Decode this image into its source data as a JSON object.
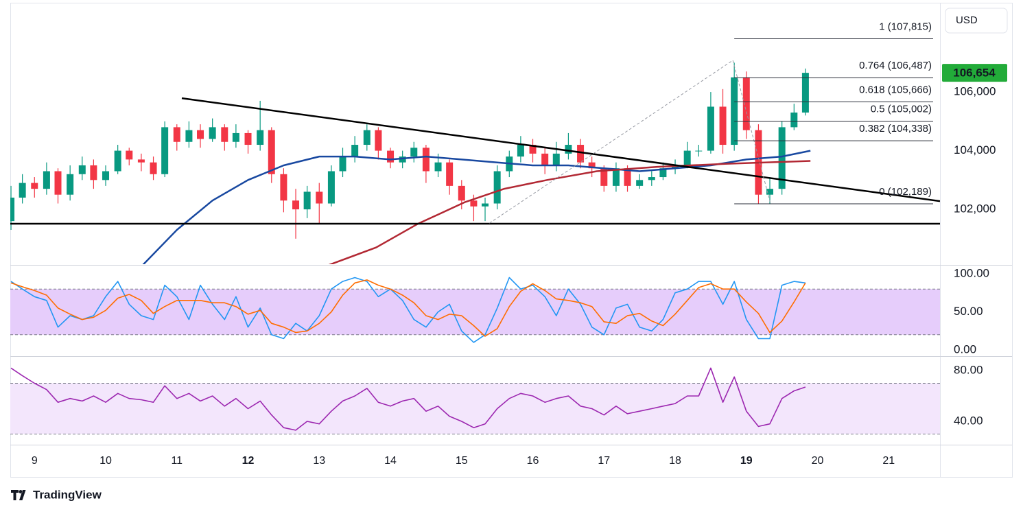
{
  "currency": "USD",
  "branding": "TradingView",
  "chart_data": [
    {
      "type": "candlestick",
      "x": [
        8.67,
        8.83,
        9,
        9.17,
        9.33,
        9.5,
        9.67,
        9.83,
        10,
        10.17,
        10.33,
        10.5,
        10.67,
        10.83,
        11,
        11.17,
        11.33,
        11.5,
        11.67,
        11.83,
        12,
        12.17,
        12.33,
        12.5,
        12.67,
        12.83,
        13,
        13.17,
        13.33,
        13.5,
        13.67,
        13.83,
        14,
        14.17,
        14.33,
        14.5,
        14.67,
        14.83,
        15,
        15.17,
        15.33,
        15.5,
        15.67,
        15.83,
        16,
        16.17,
        16.33,
        16.5,
        16.67,
        16.83,
        17,
        17.17,
        17.33,
        17.5,
        17.67,
        17.83,
        18,
        18.17,
        18.33,
        18.5,
        18.67,
        18.83,
        19,
        19.17,
        19.33,
        19.5,
        19.67,
        19.83
      ],
      "open": [
        101600,
        102400,
        102900,
        102700,
        103300,
        102500,
        103200,
        103500,
        103000,
        103300,
        104000,
        103700,
        103600,
        103200,
        104800,
        104300,
        104700,
        104400,
        104800,
        104300,
        104600,
        104200,
        104700,
        103200,
        102300,
        102000,
        102600,
        102200,
        103300,
        103800,
        104200,
        104700,
        104000,
        103600,
        103800,
        104100,
        103300,
        103600,
        102800,
        102300,
        102100,
        102200,
        103300,
        103800,
        104200,
        103900,
        103500,
        103900,
        104200,
        103600,
        103400,
        102800,
        103400,
        102800,
        103000,
        103100,
        103400,
        103500,
        104000,
        104000,
        105500,
        104200,
        106500,
        104700,
        102500,
        102700,
        104800,
        105300
      ],
      "high": [
        102800,
        103200,
        103100,
        103600,
        103400,
        103500,
        103800,
        103700,
        103500,
        104200,
        104100,
        103900,
        103800,
        105000,
        104900,
        105000,
        104900,
        105100,
        104900,
        104900,
        104700,
        105700,
        104800,
        103400,
        102700,
        102800,
        102900,
        103500,
        104100,
        104500,
        104900,
        104800,
        104100,
        104000,
        104300,
        104200,
        103900,
        103700,
        103000,
        102500,
        102400,
        103500,
        104000,
        104500,
        104400,
        104100,
        104300,
        104600,
        104400,
        103800,
        103500,
        103600,
        103500,
        103200,
        103300,
        103600,
        103700,
        104300,
        104200,
        106000,
        106100,
        107000,
        106700,
        104900,
        103100,
        105000,
        105600,
        106800
      ],
      "low": [
        101300,
        102200,
        102400,
        102500,
        102200,
        102300,
        103000,
        102700,
        102800,
        103200,
        103500,
        103300,
        103000,
        103100,
        104000,
        104100,
        104100,
        104300,
        104000,
        104100,
        103900,
        104000,
        102900,
        101900,
        101000,
        101700,
        101500,
        102100,
        103100,
        103600,
        104000,
        103700,
        103400,
        103400,
        103600,
        102900,
        103100,
        102500,
        102000,
        101600,
        101600,
        102000,
        103100,
        103600,
        103600,
        103200,
        103300,
        103700,
        103400,
        103100,
        102600,
        102600,
        102600,
        102700,
        102800,
        103000,
        103200,
        103400,
        103800,
        103900,
        103900,
        104000,
        104400,
        102189,
        102189,
        102500,
        104700,
        105200
      ],
      "close": [
        102400,
        102900,
        102700,
        103300,
        102500,
        103200,
        103500,
        103000,
        103300,
        104000,
        103700,
        103600,
        103200,
        104800,
        104300,
        104700,
        104400,
        104800,
        104300,
        104600,
        104200,
        104700,
        103200,
        102300,
        102000,
        102600,
        102200,
        103300,
        103800,
        104200,
        104700,
        104000,
        103600,
        103800,
        104100,
        103300,
        103600,
        102800,
        102300,
        102100,
        102200,
        103300,
        103800,
        104200,
        103900,
        103500,
        103900,
        104200,
        103600,
        103400,
        102800,
        103400,
        102800,
        103000,
        103100,
        103400,
        103500,
        104000,
        104000,
        105500,
        104200,
        106500,
        104700,
        102500,
        102700,
        104800,
        105300,
        106654
      ],
      "up_color": "#089981",
      "down_color": "#f23645",
      "xlim": [
        8.66,
        21.72
      ],
      "ylim": [
        100130,
        109020
      ],
      "yticks": [
        {
          "value": 102000,
          "label": "102,000"
        },
        {
          "value": 104000,
          "label": "104,000"
        },
        {
          "value": 106000,
          "label": "106,000"
        }
      ],
      "overlays": [
        {
          "color": "#1848a0",
          "x": [
            10.52,
            11,
            11.5,
            12,
            12.5,
            13,
            13.5,
            14,
            14.5,
            15,
            15.5,
            16,
            16.5,
            17,
            17.5,
            18,
            18.5,
            19,
            19.5,
            19.9
          ],
          "values": [
            100100,
            101300,
            102300,
            103000,
            103500,
            103800,
            103800,
            103700,
            103800,
            103700,
            103600,
            103500,
            103500,
            103400,
            103300,
            103400,
            103500,
            103700,
            103800,
            104000
          ]
        },
        {
          "color": "#b22833",
          "x": [
            13.13,
            13.8,
            14.38,
            15.05,
            15.6,
            16.2,
            16.9,
            17.75,
            18.7,
            19.9
          ],
          "values": [
            100100,
            100700,
            101500,
            102250,
            102700,
            103000,
            103300,
            103450,
            103550,
            103650
          ]
        }
      ],
      "trendlines": [
        {
          "color": "#000000",
          "dashed": false,
          "x": [
            11.07,
            21.72
          ],
          "values": [
            105790,
            102280
          ]
        },
        {
          "color": "#000000",
          "dashed": false,
          "x": [
            8.66,
            21.72
          ],
          "values": [
            101510,
            101510
          ]
        },
        {
          "color": "#9598a1",
          "dashed": true,
          "x": [
            15.39,
            18.81,
            19.34
          ],
          "values": [
            101530,
            107080,
            102190
          ]
        }
      ],
      "fib": {
        "x_start": 18.83,
        "color": "#2a2e39",
        "levels": [
          {
            "value": 107815,
            "label": "1 (107,815)"
          },
          {
            "value": 106487,
            "label": "0.764 (106,487)"
          },
          {
            "value": 105666,
            "label": "0.618 (105,666)"
          },
          {
            "value": 105002,
            "label": "0.5 (105,002)"
          },
          {
            "value": 104338,
            "label": "0.382 (104,338)"
          },
          {
            "value": 102189,
            "label": "0 (102,189)"
          }
        ]
      },
      "last_price": {
        "value": 106654,
        "label": "106,654",
        "color": "#22ab39"
      }
    },
    {
      "type": "line",
      "x": [
        8.67,
        8.83,
        9,
        9.17,
        9.33,
        9.5,
        9.67,
        9.83,
        10,
        10.17,
        10.33,
        10.5,
        10.67,
        10.83,
        11,
        11.17,
        11.33,
        11.5,
        11.67,
        11.83,
        12,
        12.17,
        12.33,
        12.5,
        12.67,
        12.83,
        13,
        13.17,
        13.33,
        13.5,
        13.67,
        13.83,
        14,
        14.17,
        14.33,
        14.5,
        14.67,
        14.83,
        15,
        15.17,
        15.33,
        15.5,
        15.67,
        15.83,
        16,
        16.17,
        16.33,
        16.5,
        16.67,
        16.83,
        17,
        17.17,
        17.33,
        17.5,
        17.67,
        17.83,
        18,
        18.17,
        18.33,
        18.5,
        18.67,
        18.83,
        19,
        19.17,
        19.33,
        19.5,
        19.67,
        19.83
      ],
      "series": [
        {
          "color": "#2196f3",
          "values": [
            90,
            80,
            70,
            65,
            30,
            45,
            40,
            45,
            70,
            90,
            60,
            45,
            40,
            85,
            70,
            40,
            85,
            60,
            40,
            70,
            30,
            55,
            20,
            15,
            35,
            25,
            45,
            80,
            90,
            95,
            90,
            70,
            80,
            65,
            40,
            30,
            50,
            60,
            25,
            10,
            20,
            55,
            95,
            80,
            85,
            70,
            45,
            80,
            60,
            30,
            20,
            55,
            60,
            30,
            25,
            40,
            75,
            80,
            90,
            90,
            60,
            90,
            40,
            15,
            15,
            85,
            90,
            88
          ]
        },
        {
          "color": "#ff6d00",
          "values": [
            88,
            83,
            78,
            72,
            55,
            47,
            40,
            43,
            52,
            68,
            73,
            65,
            48,
            57,
            65,
            65,
            65,
            62,
            62,
            57,
            47,
            52,
            35,
            30,
            23,
            25,
            35,
            50,
            72,
            88,
            92,
            85,
            80,
            72,
            62,
            45,
            40,
            47,
            45,
            32,
            18,
            28,
            57,
            77,
            87,
            78,
            67,
            65,
            62,
            57,
            37,
            35,
            45,
            48,
            38,
            32,
            47,
            65,
            82,
            87,
            80,
            80,
            63,
            48,
            23,
            38,
            63,
            88
          ]
        }
      ],
      "xlim": [
        8.66,
        21.72
      ],
      "ylim": [
        -7.2,
        109.9
      ],
      "yticks": [
        {
          "value": 100,
          "label": "100.00"
        },
        {
          "value": 50,
          "label": "50.00"
        },
        {
          "value": 0,
          "label": "0.00"
        }
      ],
      "bands": [
        20,
        80
      ],
      "band_color": "#e6cdfb"
    },
    {
      "type": "line",
      "x": [
        8.67,
        8.83,
        9,
        9.17,
        9.33,
        9.5,
        9.67,
        9.83,
        10,
        10.17,
        10.33,
        10.5,
        10.67,
        10.83,
        11,
        11.17,
        11.33,
        11.5,
        11.67,
        11.83,
        12,
        12.17,
        12.33,
        12.5,
        12.67,
        12.83,
        13,
        13.17,
        13.33,
        13.5,
        13.67,
        13.83,
        14,
        14.17,
        14.33,
        14.5,
        14.67,
        14.83,
        15,
        15.17,
        15.33,
        15.5,
        15.67,
        15.83,
        16,
        16.17,
        16.33,
        16.5,
        16.67,
        16.83,
        17,
        17.17,
        17.33,
        17.5,
        17.67,
        17.83,
        18,
        18.17,
        18.33,
        18.5,
        18.67,
        18.83,
        19,
        19.17,
        19.33,
        19.5,
        19.67,
        19.83
      ],
      "series": [
        {
          "color": "#9c27b0",
          "values": [
            82,
            76,
            70,
            65,
            55,
            58,
            56,
            60,
            55,
            62,
            58,
            57,
            55,
            68,
            58,
            62,
            56,
            60,
            52,
            58,
            50,
            56,
            45,
            35,
            33,
            40,
            38,
            48,
            56,
            60,
            66,
            55,
            52,
            56,
            58,
            48,
            52,
            44,
            40,
            35,
            38,
            50,
            58,
            62,
            60,
            55,
            58,
            60,
            52,
            50,
            45,
            52,
            46,
            48,
            50,
            52,
            54,
            60,
            60,
            82,
            55,
            75,
            48,
            36,
            38,
            58,
            64,
            67
          ]
        }
      ],
      "xlim": [
        8.66,
        21.72
      ],
      "ylim": [
        21.6,
        90.8
      ],
      "yticks": [
        {
          "value": 80,
          "label": "80.00"
        },
        {
          "value": 40,
          "label": "40.00"
        }
      ],
      "bands": [
        30,
        70
      ],
      "band_color": "#f3e6fc",
      "xticks": [
        9,
        10,
        11,
        12,
        13,
        14,
        15,
        16,
        17,
        18,
        19,
        20,
        21
      ],
      "bold_xticks": [
        12,
        19
      ]
    }
  ]
}
